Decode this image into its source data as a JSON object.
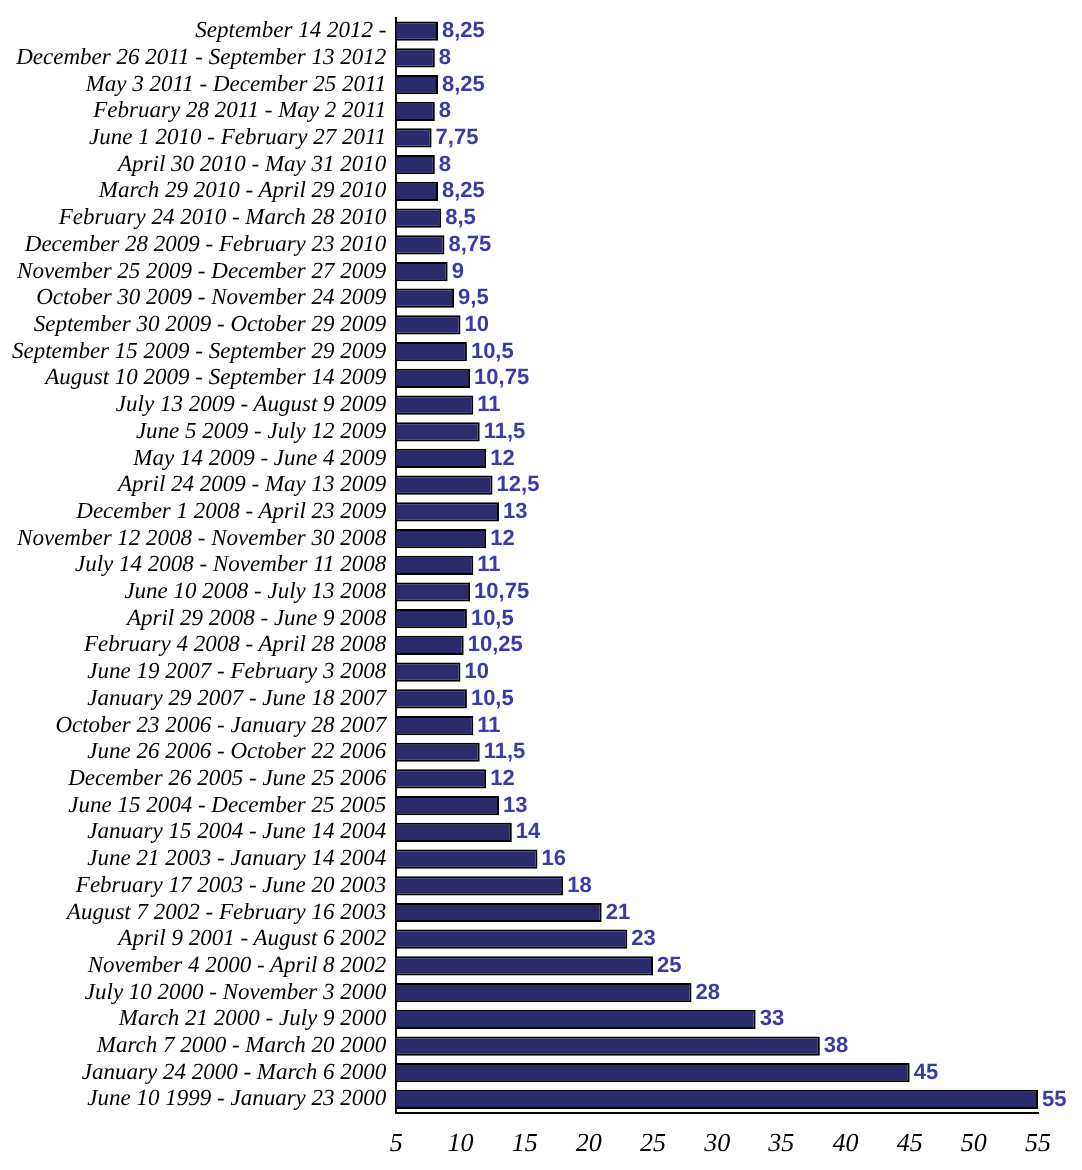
{
  "chart_data": {
    "type": "bar",
    "orientation": "horizontal",
    "categories": [
      "September 14 2012 -",
      "December 26 2011 - September 13 2012",
      "May 3 2011 - December 25 2011",
      "February 28 2011 - May 2 2011",
      "June 1 2010 - February 27 2011",
      "April 30 2010 - May 31 2010",
      "March 29 2010 - April 29 2010",
      "February 24 2010 - March 28 2010",
      "December 28 2009 - February 23 2010",
      "November 25 2009 - December 27 2009",
      "October 30 2009 - November 24 2009",
      "September 30 2009 - October 29 2009",
      "September 15 2009 - September 29 2009",
      "August 10 2009 - September 14 2009",
      "July 13 2009 - August 9 2009",
      "June 5 2009 - July 12 2009",
      "May 14 2009 - June 4 2009",
      "April 24 2009 - May 13 2009",
      "December 1 2008 - April 23 2009",
      "November 12 2008 - November 30 2008",
      "July 14 2008 - November 11 2008",
      "June 10 2008 - July 13 2008",
      "April 29 2008 - June 9 2008",
      "February 4 2008 - April 28 2008",
      "June 19 2007 - February 3 2008",
      "January 29 2007 - June 18 2007",
      "October 23 2006 - January 28 2007",
      "June 26 2006 - October 22 2006",
      "December 26 2005 - June 25 2006",
      "June 15 2004 - December 25 2005",
      "January 15 2004 - June 14 2004",
      "June 21 2003 - January 14 2004",
      "February 17 2003 - June 20 2003",
      "August 7 2002 - February 16 2003",
      "April 9 2001 - August 6 2002",
      "November 4 2000 - April 8 2002",
      "July 10 2000 - November 3 2000",
      "March 21 2000 - July 9 2000",
      "March 7 2000 - March 20 2000",
      "January 24 2000 - March 6 2000",
      "June 10 1999 - January 23 2000"
    ],
    "values": [
      8.25,
      8,
      8.25,
      8,
      7.75,
      8,
      8.25,
      8.5,
      8.75,
      9,
      9.5,
      10,
      10.5,
      10.75,
      11,
      11.5,
      12,
      12.5,
      13,
      12,
      11,
      10.75,
      10.5,
      10.25,
      10,
      10.5,
      11,
      11.5,
      12,
      13,
      14,
      16,
      18,
      21,
      23,
      25,
      28,
      33,
      38,
      45,
      55
    ],
    "value_labels": [
      "8,25",
      "8",
      "8,25",
      "8",
      "7,75",
      "8",
      "8,25",
      "8,5",
      "8,75",
      "9",
      "9,5",
      "10",
      "10,5",
      "10,75",
      "11",
      "11,5",
      "12",
      "12,5",
      "13",
      "12",
      "11",
      "10,75",
      "10,5",
      "10,25",
      "10",
      "10,5",
      "11",
      "11,5",
      "12",
      "13",
      "14",
      "16",
      "18",
      "21",
      "23",
      "25",
      "28",
      "33",
      "38",
      "45",
      "55"
    ],
    "color": "#2b2b6b",
    "xlim": [
      5,
      55
    ],
    "xticks": [
      5,
      10,
      15,
      20,
      25,
      30,
      35,
      40,
      45,
      50,
      55
    ],
    "grid": false,
    "legend": false
  }
}
